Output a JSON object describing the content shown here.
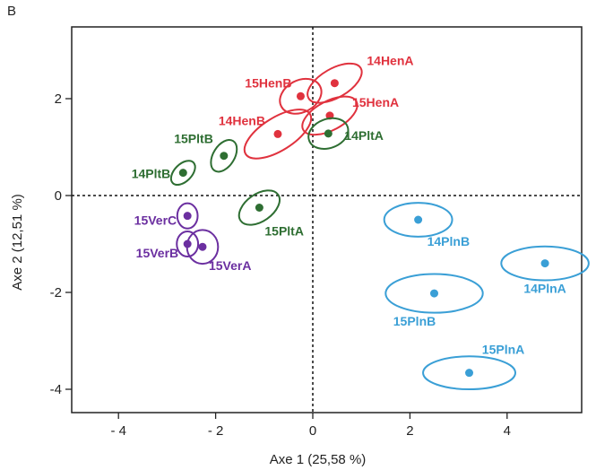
{
  "panel_letter": "B",
  "chart_data": {
    "type": "scatter",
    "xlabel": "Axe 1 (25,58 %)",
    "ylabel": "Axe 2 (12,51 %)",
    "xlim": [
      -5,
      5.7
    ],
    "ylim": [
      -4.45,
      3.5
    ],
    "xticks": [
      -4,
      -2,
      0,
      2,
      4
    ],
    "xtick_labels": [
      "- 4",
      "- 2",
      "0",
      "2",
      "4"
    ],
    "yticks": [
      -4,
      -2,
      0,
      2
    ],
    "ytick_labels": [
      "-4",
      "-2",
      "0",
      "2"
    ],
    "reference_lines": {
      "x": 0,
      "y": 0,
      "style": "dotted"
    },
    "grid": false,
    "colors": {
      "red": "#e0323e",
      "green": "#2e6e32",
      "purple": "#6b2fa0",
      "blue": "#3a9fd6"
    },
    "points": [
      {
        "label": "14HenA",
        "x": 0.45,
        "y": 2.32,
        "ex": 0.62,
        "ey": 0.3,
        "angle": 30,
        "color": "red"
      },
      {
        "label": "15HenB",
        "x": -0.25,
        "y": 2.05,
        "ex": 0.45,
        "ey": 0.33,
        "angle": 28,
        "color": "red"
      },
      {
        "label": "15HenA",
        "x": 0.35,
        "y": 1.65,
        "ex": 0.62,
        "ey": 0.3,
        "angle": 28,
        "color": "red"
      },
      {
        "label": "14HenB",
        "x": -0.72,
        "y": 1.27,
        "ex": 0.78,
        "ey": 0.34,
        "angle": 32,
        "color": "red"
      },
      {
        "label": "14PltA",
        "x": 0.32,
        "y": 1.28,
        "ex": 0.42,
        "ey": 0.3,
        "angle": 20,
        "color": "green"
      },
      {
        "label": "15PltB",
        "x": -1.83,
        "y": 0.82,
        "ex": 0.36,
        "ey": 0.22,
        "angle": 58,
        "color": "green"
      },
      {
        "label": "14PltB",
        "x": -2.67,
        "y": 0.47,
        "ex": 0.3,
        "ey": 0.18,
        "angle": 45,
        "color": "green"
      },
      {
        "label": "15PltA",
        "x": -1.1,
        "y": -0.25,
        "ex": 0.47,
        "ey": 0.28,
        "angle": 35,
        "color": "green"
      },
      {
        "label": "15VerC",
        "x": -2.58,
        "y": -0.42,
        "ex": 0.21,
        "ey": 0.26,
        "angle": 0,
        "color": "purple"
      },
      {
        "label": "15VerB",
        "x": -2.58,
        "y": -1.0,
        "ex": 0.22,
        "ey": 0.26,
        "angle": 0,
        "color": "purple"
      },
      {
        "label": "15VerA",
        "x": -2.27,
        "y": -1.06,
        "ex": 0.32,
        "ey": 0.35,
        "angle": 0,
        "color": "purple"
      },
      {
        "label": "14PlnB",
        "x": 2.17,
        "y": -0.5,
        "ex": 0.7,
        "ey": 0.35,
        "angle": 0,
        "color": "blue"
      },
      {
        "label": "14PlnA",
        "x": 4.78,
        "y": -1.4,
        "ex": 0.9,
        "ey": 0.35,
        "angle": 0,
        "color": "blue"
      },
      {
        "label": "15PlnB",
        "x": 2.5,
        "y": -2.02,
        "ex": 1.0,
        "ey": 0.4,
        "angle": 0,
        "color": "blue"
      },
      {
        "label": "15PlnA",
        "x": 3.22,
        "y": -3.66,
        "ex": 0.95,
        "ey": 0.34,
        "angle": 0,
        "color": "blue"
      }
    ]
  }
}
